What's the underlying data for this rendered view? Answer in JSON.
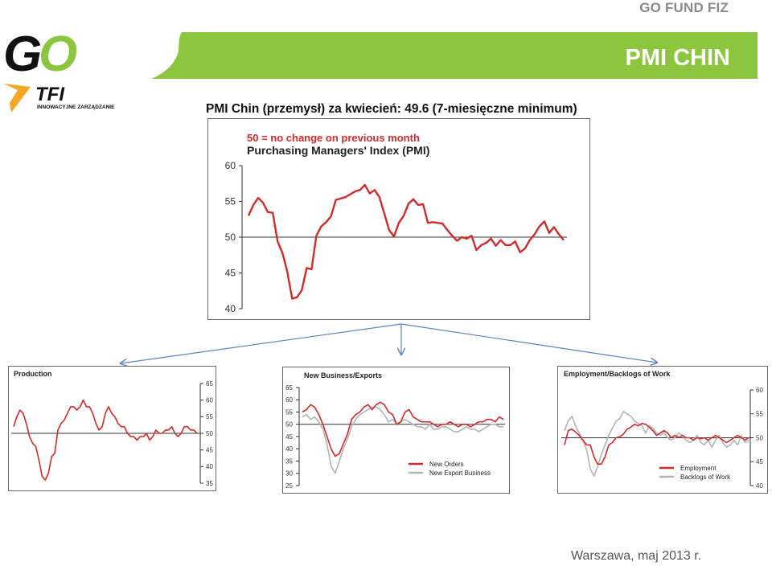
{
  "header": {
    "fund_name": "GO FUND FIZ",
    "banner_title": "PMI CHIN",
    "brand": {
      "logo_text": "GO",
      "sub_text": "TFI",
      "tagline": "INNOWACYJNE ZARZĄDZANIE"
    }
  },
  "slide": {
    "title": "PMI Chin (przemysł) za kwiecień: 49.6 (7-miesięczne minimum)"
  },
  "footer": {
    "text": "Warszawa, maj 2013 r."
  },
  "colors": {
    "banner_green": "#8cc63f",
    "series_red": "#d42a2a",
    "series_grey": "#b4b4b4",
    "axis": "#333333"
  },
  "chart_data": [
    {
      "id": "main",
      "type": "line",
      "title": "Purchasing Managers' Index (PMI)",
      "annotation": "50 = no change on previous month",
      "ylim": [
        40,
        60
      ],
      "yticks": [
        "60",
        "55",
        "50",
        "45",
        "40"
      ],
      "reference_line": 50,
      "series": [
        {
          "name": "",
          "color": "#d42a2a",
          "values": [
            53.0,
            54.5,
            55.5,
            54.8,
            53.5,
            53.4,
            49.4,
            47.8,
            45.2,
            41.4,
            41.6,
            42.6,
            45.7,
            45.5,
            50.2,
            51.5,
            52.1,
            52.9,
            55.2,
            55.4,
            55.6,
            56.0,
            56.4,
            56.6,
            57.3,
            56.1,
            56.6,
            55.6,
            53.3,
            51.0,
            50.1,
            52.0,
            53.0,
            54.7,
            55.3,
            54.5,
            54.6,
            52.0,
            52.1,
            52.0,
            51.9,
            51.0,
            50.2,
            49.5,
            50.0,
            49.8,
            50.2,
            48.2,
            48.9,
            49.2,
            49.8,
            48.8,
            49.6,
            48.9,
            48.9,
            49.4,
            47.9,
            48.4,
            49.6,
            50.4,
            51.5,
            52.2,
            50.6,
            51.4,
            50.4,
            49.6
          ]
        }
      ]
    },
    {
      "id": "production",
      "type": "line",
      "title": "Production",
      "ylim": [
        35,
        65
      ],
      "yticks": [
        "65",
        "60",
        "55",
        "50",
        "45",
        "40",
        "35"
      ],
      "reference_line": 50,
      "series": [
        {
          "name": "",
          "color": "#d42a2a",
          "values": [
            52,
            55,
            57,
            56,
            53,
            49,
            47,
            46,
            42,
            37,
            36,
            38,
            43,
            44,
            51,
            53,
            54,
            56,
            58,
            58,
            57,
            58,
            60,
            58,
            58,
            56,
            53,
            51,
            52,
            56,
            58,
            56,
            55,
            53,
            52,
            52,
            50,
            49,
            49,
            48,
            49,
            49,
            50,
            48,
            49,
            51,
            50,
            50,
            51,
            51,
            52,
            50,
            49,
            50,
            52,
            52,
            51,
            51,
            50
          ]
        }
      ]
    },
    {
      "id": "new-business",
      "type": "line",
      "title": "New Business/Exports",
      "ylim": [
        25,
        65
      ],
      "yticks": [
        "65",
        "60",
        "55",
        "50",
        "45",
        "40",
        "35",
        "30",
        "25"
      ],
      "reference_line": 50,
      "series": [
        {
          "name": "New Orders",
          "color": "#d42a2a",
          "values": [
            55,
            56,
            58,
            57,
            54,
            50,
            45,
            40,
            37,
            38,
            42,
            46,
            52,
            54,
            55,
            57,
            58,
            56,
            58,
            59,
            58,
            55,
            54,
            50,
            51,
            55,
            56,
            53,
            52,
            51,
            51,
            51,
            50,
            49,
            50,
            50,
            51,
            50,
            49,
            50,
            50,
            49,
            50,
            51,
            51,
            52,
            52,
            51,
            53,
            52
          ]
        },
        {
          "name": "New Export Business",
          "color": "#b4b4b4",
          "values": [
            53,
            54,
            52,
            53,
            51,
            48,
            42,
            33,
            30,
            35,
            40,
            44,
            49,
            52,
            54,
            55,
            56,
            57,
            57,
            56,
            54,
            51,
            52,
            50,
            51,
            52,
            51,
            50,
            49,
            49,
            48,
            50,
            48,
            48,
            49,
            49,
            48,
            47,
            47,
            48,
            49,
            48,
            48,
            47,
            48,
            49,
            50,
            50,
            49,
            49
          ]
        }
      ]
    },
    {
      "id": "employment",
      "type": "line",
      "title": "Employment/Backlogs of Work",
      "ylim": [
        40,
        60
      ],
      "yticks": [
        "60",
        "55",
        "50",
        "45",
        "40"
      ],
      "reference_line": 50,
      "series": [
        {
          "name": "Employment",
          "color": "#d42a2a",
          "values": [
            48.5,
            51.5,
            51.8,
            51.2,
            50.5,
            49.5,
            48.5,
            48.5,
            46.0,
            44.5,
            44.5,
            46.0,
            48.5,
            49.0,
            50.0,
            50.2,
            50.8,
            51.8,
            52.2,
            52.8,
            52.5,
            53.0,
            52.8,
            52.2,
            51.5,
            50.5,
            51.0,
            51.5,
            51.0,
            50.0,
            50.5,
            50.0,
            50.5,
            50.0,
            50.0,
            49.5,
            50.0,
            49.8,
            50.0,
            49.5,
            50.0,
            50.5,
            50.0,
            49.5,
            49.0,
            49.5,
            50.0,
            50.5,
            50.0,
            49.5,
            50.0
          ]
        },
        {
          "name": "Backlogs of Work",
          "color": "#b4b4b4",
          "values": [
            51.5,
            53.5,
            54.5,
            52.5,
            51.0,
            49.5,
            47.5,
            43.5,
            42.0,
            44.0,
            46.5,
            48.5,
            50.5,
            52.0,
            53.5,
            54.0,
            55.5,
            55.0,
            54.5,
            53.5,
            53.0,
            52.5,
            51.0,
            52.5,
            52.0,
            51.0,
            50.5,
            51.0,
            50.0,
            49.5,
            50.0,
            51.0,
            50.5,
            49.5,
            49.0,
            49.5,
            50.5,
            49.0,
            48.5,
            49.5,
            48.0,
            49.5,
            50.5,
            49.0,
            48.0,
            48.5,
            49.5,
            48.5,
            50.5,
            49.0,
            49.5
          ]
        }
      ]
    }
  ]
}
